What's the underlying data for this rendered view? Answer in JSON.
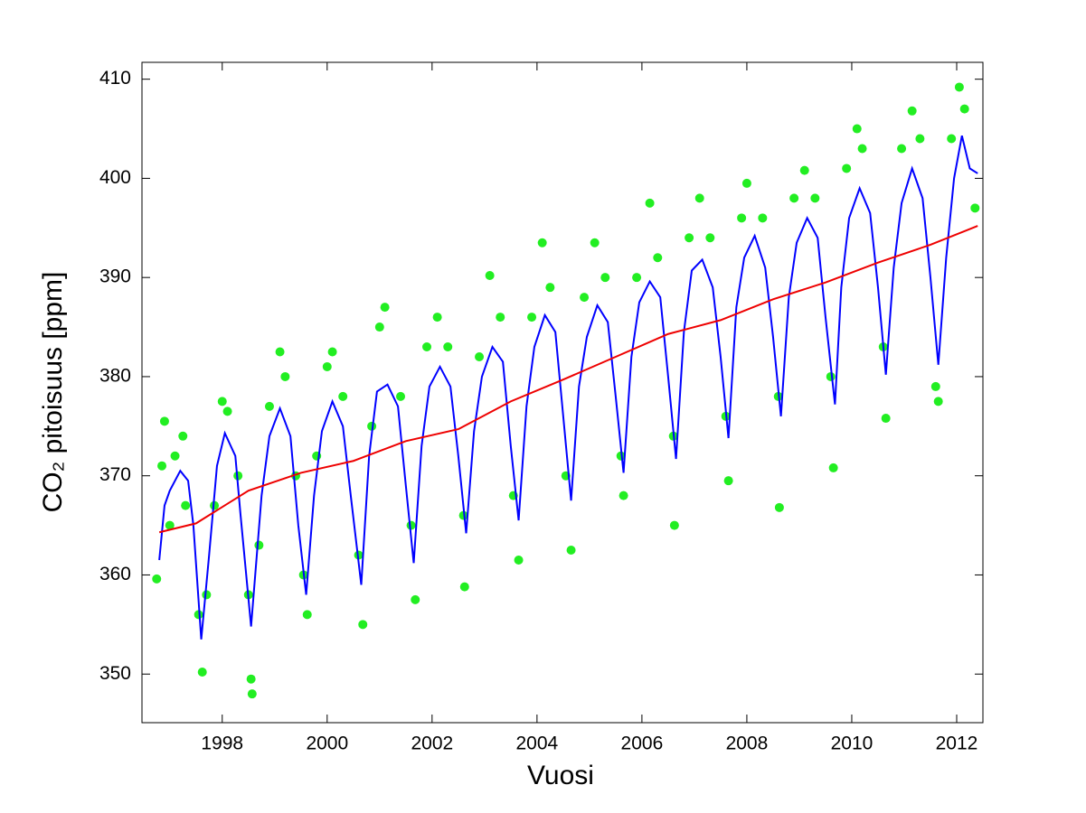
{
  "chart_data": {
    "type": "line",
    "x_label": "Vuosi",
    "y_label": "CO₂ pitoisuus [ppm]",
    "xlim": [
      1996.47,
      2012.5
    ],
    "ylim": [
      345.1,
      411.7
    ],
    "xticks": [
      1998,
      2000,
      2002,
      2004,
      2006,
      2008,
      2010,
      2012
    ],
    "yticks": [
      350,
      360,
      370,
      380,
      390,
      400,
      410
    ],
    "series": [
      {
        "type": "scatter",
        "color": "#22ee22",
        "x": [
          1996.75,
          1996.85,
          1996.9,
          1997.0,
          1997.1,
          1997.25,
          1997.3,
          1997.55,
          1997.62,
          1997.7,
          1997.85,
          1998.0,
          1998.1,
          1998.3,
          1998.5,
          1998.55,
          1998.57,
          1998.7,
          1998.9,
          1999.1,
          1999.2,
          1999.4,
          1999.55,
          1999.62,
          1999.8,
          2000.0,
          2000.1,
          2000.3,
          2000.6,
          2000.68,
          2000.85,
          2001.0,
          2001.1,
          2001.4,
          2001.6,
          2001.68,
          2001.9,
          2002.1,
          2002.3,
          2002.6,
          2002.62,
          2002.9,
          2003.1,
          2003.3,
          2003.55,
          2003.65,
          2003.9,
          2004.1,
          2004.25,
          2004.55,
          2004.65,
          2004.9,
          2005.1,
          2005.3,
          2005.6,
          2005.65,
          2005.9,
          2006.15,
          2006.3,
          2006.6,
          2006.62,
          2006.9,
          2007.1,
          2007.3,
          2007.6,
          2007.65,
          2007.9,
          2008.0,
          2008.3,
          2008.6,
          2008.62,
          2008.9,
          2009.1,
          2009.3,
          2009.6,
          2009.65,
          2009.9,
          2010.1,
          2010.2,
          2010.6,
          2010.65,
          2010.95,
          2011.15,
          2011.3,
          2011.6,
          2011.65,
          2011.9,
          2012.05,
          2012.15,
          2012.35
        ],
        "values": [
          359.6,
          371,
          375.5,
          365,
          372,
          374,
          367,
          356,
          350.2,
          358,
          367,
          377.5,
          376.5,
          370,
          358,
          349.5,
          348,
          363,
          377,
          382.5,
          380,
          370,
          360,
          356,
          372,
          381,
          382.5,
          378,
          362,
          355,
          375,
          385,
          387,
          378,
          365,
          357.5,
          383,
          386,
          383,
          366,
          358.8,
          382,
          390.2,
          386,
          368,
          361.5,
          386,
          393.5,
          389,
          370,
          362.5,
          388,
          393.5,
          390,
          372,
          368,
          390,
          397.5,
          392,
          374,
          365,
          394,
          398,
          394,
          376,
          369.5,
          396,
          399.5,
          396,
          378,
          366.8,
          398,
          400.8,
          398,
          380,
          370.8,
          401,
          405,
          403,
          383,
          375.8,
          403,
          406.8,
          404,
          379,
          377.5,
          404,
          409.2,
          407,
          397
        ]
      },
      {
        "type": "line",
        "color": "#0000ff",
        "x": [
          1996.8,
          1996.9,
          1997.0,
          1997.2,
          1997.35,
          1997.45,
          1997.6,
          1997.75,
          1997.9,
          1998.05,
          1998.25,
          1998.35,
          1998.55,
          1998.75,
          1998.9,
          1999.1,
          1999.3,
          1999.45,
          1999.6,
          1999.75,
          1999.9,
          2000.1,
          2000.3,
          2000.45,
          2000.65,
          2000.8,
          2000.95,
          2001.15,
          2001.35,
          2001.5,
          2001.65,
          2001.8,
          2001.95,
          2002.15,
          2002.35,
          2002.5,
          2002.65,
          2002.8,
          2002.95,
          2003.15,
          2003.35,
          2003.5,
          2003.65,
          2003.8,
          2003.95,
          2004.15,
          2004.35,
          2004.5,
          2004.65,
          2004.8,
          2004.95,
          2005.15,
          2005.35,
          2005.5,
          2005.65,
          2005.8,
          2005.95,
          2006.15,
          2006.35,
          2006.5,
          2006.65,
          2006.8,
          2006.95,
          2007.15,
          2007.35,
          2007.5,
          2007.65,
          2007.8,
          2007.95,
          2008.15,
          2008.35,
          2008.5,
          2008.65,
          2008.8,
          2008.95,
          2009.15,
          2009.35,
          2009.5,
          2009.68,
          2009.8,
          2009.95,
          2010.15,
          2010.35,
          2010.5,
          2010.65,
          2010.8,
          2010.95,
          2011.15,
          2011.35,
          2011.5,
          2011.65,
          2011.8,
          2011.95,
          2012.1,
          2012.25,
          2012.4
        ],
        "values": [
          361.5,
          367,
          368.5,
          370.5,
          369.5,
          365,
          353.5,
          362,
          371,
          374.3,
          372,
          366,
          354.8,
          368,
          374,
          376.8,
          374,
          365,
          358,
          368,
          374.5,
          377.5,
          375,
          368,
          359,
          372,
          378.5,
          379.2,
          377,
          369,
          361.2,
          373,
          379,
          381,
          379,
          372,
          364.2,
          374.5,
          380,
          383,
          381.5,
          373,
          365.5,
          377,
          383,
          386.2,
          384.5,
          376,
          367.5,
          379,
          384,
          387.2,
          385.5,
          378,
          370.3,
          382,
          387.5,
          389.6,
          388,
          380,
          371.7,
          384.5,
          390.7,
          391.8,
          389,
          382,
          373.8,
          387,
          392,
          394.2,
          391,
          384,
          376,
          388,
          393.5,
          396,
          394,
          386,
          377.2,
          389,
          396,
          399,
          396.5,
          389,
          380.2,
          391,
          397.5,
          401,
          398,
          390,
          381.2,
          392,
          400,
          404.3,
          401,
          400.5
        ]
      },
      {
        "type": "line",
        "color": "#ee0000",
        "x": [
          1996.8,
          1997.5,
          1998.5,
          1999.5,
          2000.5,
          2001.5,
          2002.5,
          2003.5,
          2004.5,
          2005.5,
          2006.5,
          2007.5,
          2008.5,
          2009.5,
          2010.5,
          2011.5,
          2012.4
        ],
        "values": [
          364.3,
          365.2,
          368.5,
          370.3,
          371.5,
          373.5,
          374.7,
          377.5,
          379.7,
          382,
          384.3,
          385.7,
          387.8,
          389.5,
          391.5,
          393.3,
          395.2
        ]
      }
    ]
  }
}
